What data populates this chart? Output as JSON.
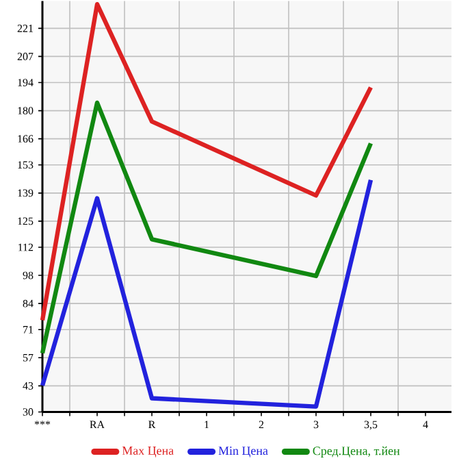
{
  "chart_data": {
    "type": "line",
    "categories": [
      "***",
      "RA",
      "R",
      "1",
      "2",
      "3",
      "3,5",
      "4"
    ],
    "series": [
      {
        "name": "Max Цена",
        "color": "#dd2222",
        "values": [
          75.7,
          233,
          174.6,
          null,
          null,
          137.8,
          191.6,
          null
        ]
      },
      {
        "name": "Min Цена",
        "color": "#2222dd",
        "values": [
          43.2,
          136.4,
          36.8,
          null,
          null,
          32.7,
          145.5,
          null
        ]
      },
      {
        "name": "Сред.Цена, т.йен",
        "color": "#118811",
        "values": [
          59.3,
          184,
          116,
          null,
          null,
          97.7,
          163.7,
          null
        ]
      }
    ],
    "ylim": [
      30,
      234.6
    ],
    "yticks": [
      30,
      43,
      57,
      71,
      84,
      98,
      112,
      125,
      139,
      153,
      166,
      180,
      194,
      207,
      221
    ],
    "grid": true,
    "legend": "bottom",
    "marker": "none",
    "line_style": "solid"
  }
}
